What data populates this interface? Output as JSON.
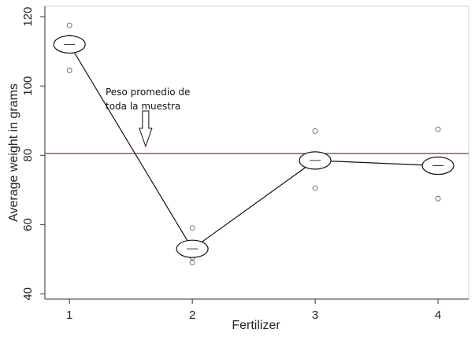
{
  "chart_data": {
    "type": "scatter",
    "title": "",
    "xlabel": "Fertilizer",
    "ylabel": "Average weight in grams",
    "xlim": [
      0.8,
      4.25
    ],
    "ylim": [
      38.5,
      123
    ],
    "x_ticks": [
      1,
      2,
      3,
      4
    ],
    "y_ticks": [
      40,
      60,
      80,
      100,
      120
    ],
    "grid": false,
    "series": [
      {
        "role": "observations",
        "marker": "hollow-circle",
        "points": [
          {
            "x": 1,
            "y": 117.5
          },
          {
            "x": 1,
            "y": 114
          },
          {
            "x": 1,
            "y": 104.5
          },
          {
            "x": 2,
            "y": 59
          },
          {
            "x": 2,
            "y": 50.5
          },
          {
            "x": 2,
            "y": 49
          },
          {
            "x": 3,
            "y": 87
          },
          {
            "x": 3,
            "y": 70.5
          },
          {
            "x": 4,
            "y": 87.5
          },
          {
            "x": 4,
            "y": 67.5
          }
        ]
      },
      {
        "role": "group-means",
        "marker": "ellipse-with-dash",
        "line": true,
        "x": [
          1,
          2,
          3,
          4
        ],
        "values": [
          112,
          53,
          78.5,
          77
        ]
      }
    ],
    "reference_line": {
      "axis": "y",
      "value": 80.5,
      "color": "#b22222"
    },
    "annotation": {
      "lines": [
        "Peso promedio de",
        "toda la muestra"
      ],
      "arrow": "down",
      "arrow_x": 1.62
    }
  }
}
